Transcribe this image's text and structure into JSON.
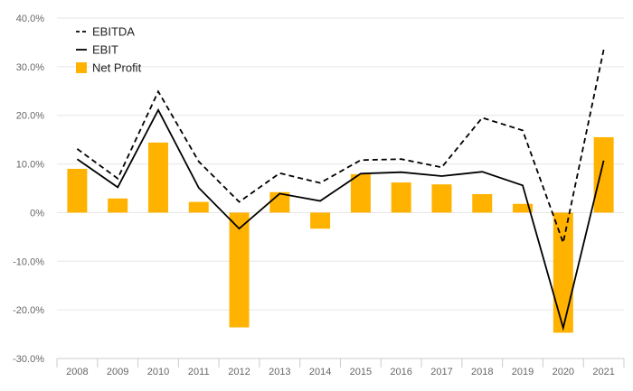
{
  "chart_data": {
    "type": "bar",
    "categories": [
      "2008",
      "2009",
      "2010",
      "2011",
      "2012",
      "2013",
      "2014",
      "2015",
      "2016",
      "2017",
      "2018",
      "2019",
      "2020",
      "2021"
    ],
    "ylim": [
      -30,
      40
    ],
    "yticks": [
      "40.0%",
      "30.0%",
      "20.0%",
      "10.0%",
      "0%",
      "-10.0%",
      "-20.0%",
      "-30.0%"
    ],
    "ytick_values": [
      40,
      30,
      20,
      10,
      0,
      -10,
      -20,
      -30
    ],
    "grid": true,
    "legend_placement": "top-left",
    "series": [
      {
        "name": "EBITDA",
        "type": "line",
        "style": "dashed",
        "color": "#000000",
        "values": [
          13.1,
          7.0,
          24.9,
          10.5,
          2.2,
          8.1,
          6.1,
          10.8,
          11.0,
          9.3,
          19.5,
          16.9,
          -6.2,
          33.5
        ]
      },
      {
        "name": "EBIT",
        "type": "line",
        "style": "solid",
        "color": "#000000",
        "values": [
          11.0,
          5.2,
          21.1,
          5.1,
          -3.3,
          3.9,
          2.4,
          8.0,
          8.3,
          7.5,
          8.4,
          5.6,
          -23.7,
          10.7
        ]
      },
      {
        "name": "Net Profit",
        "type": "bar",
        "color": "#FFB300",
        "values": [
          9.0,
          2.9,
          14.4,
          2.2,
          -23.6,
          4.2,
          -3.3,
          7.9,
          6.2,
          5.8,
          3.8,
          1.8,
          -24.7,
          15.5
        ]
      }
    ]
  }
}
